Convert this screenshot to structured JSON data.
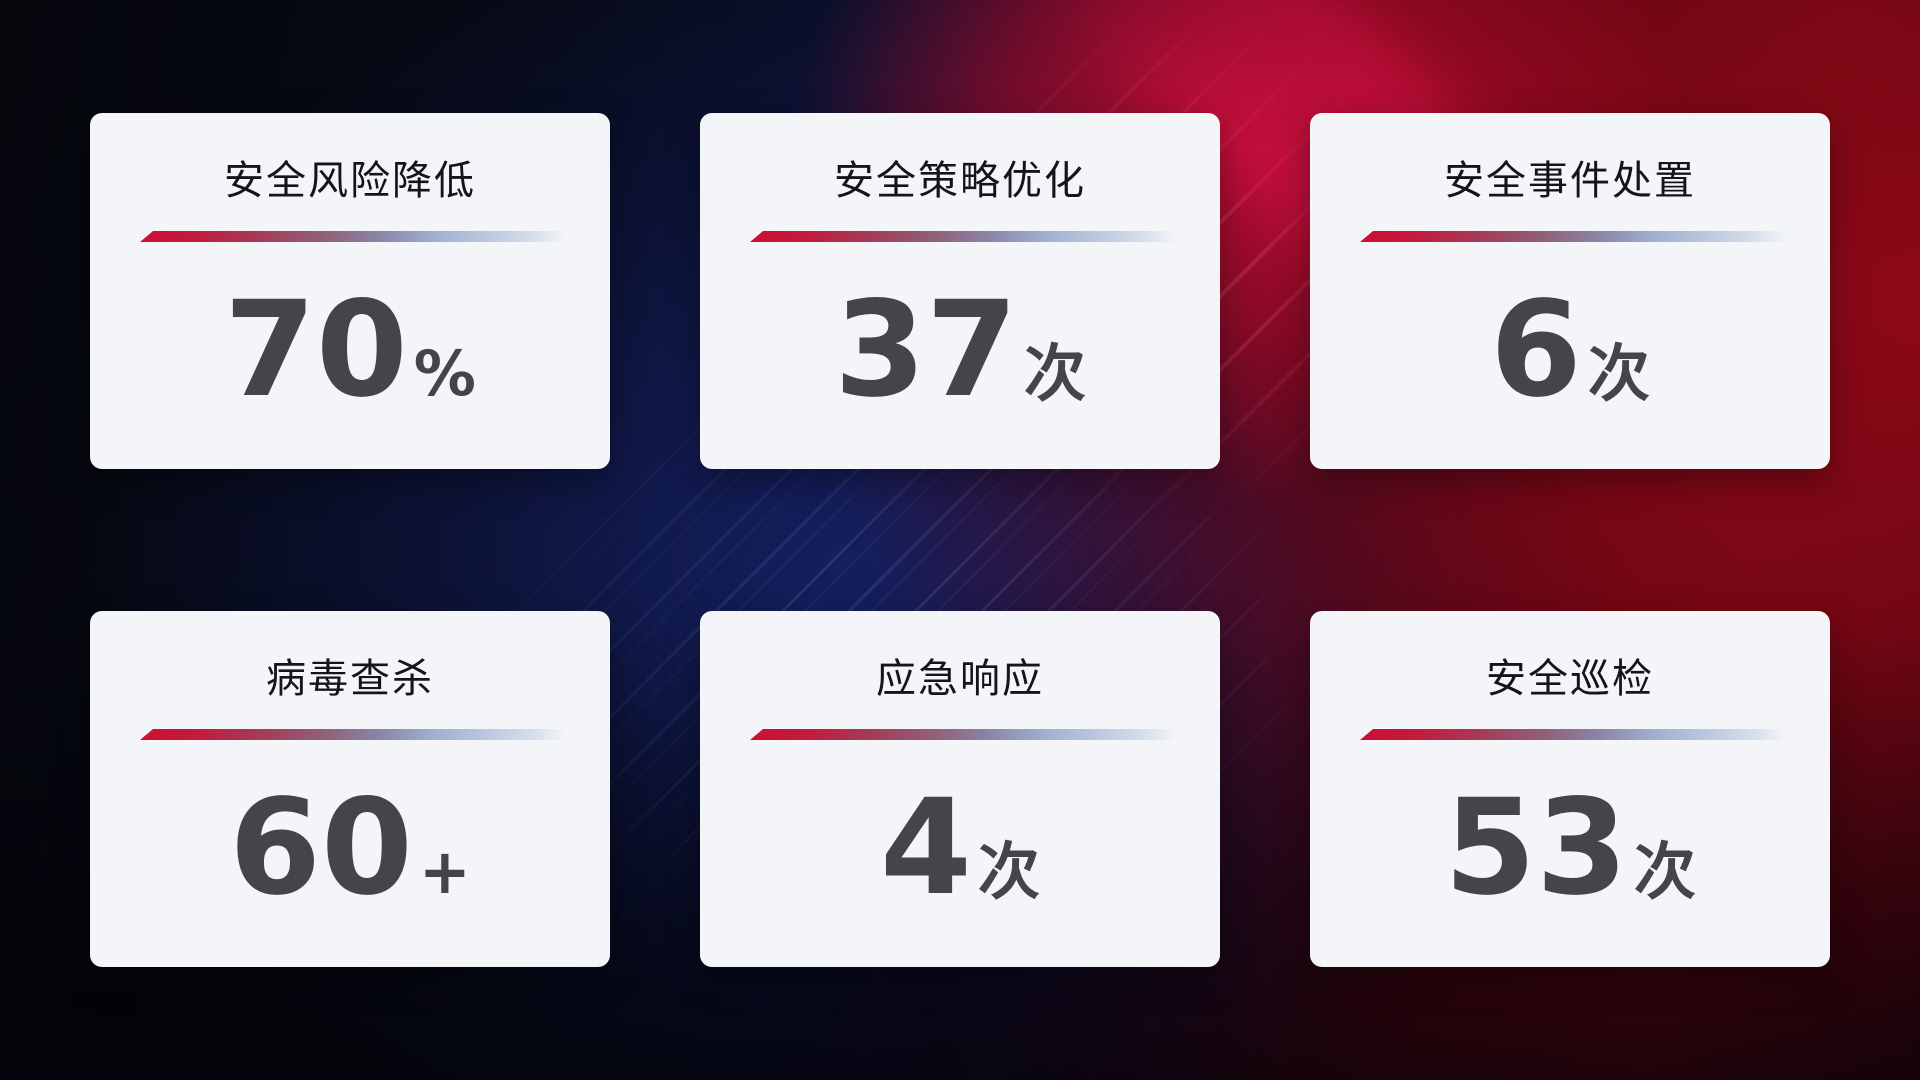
{
  "cards": [
    {
      "title": "安全风险降低",
      "value": "70",
      "unit": "%"
    },
    {
      "title": "安全策略优化",
      "value": "37",
      "unit": "次"
    },
    {
      "title": "安全事件处置",
      "value": "6",
      "unit": "次"
    },
    {
      "title": "病毒查杀",
      "value": "60",
      "unit": "+"
    },
    {
      "title": "应急响应",
      "value": "4",
      "unit": "次"
    },
    {
      "title": "安全巡检",
      "value": "53",
      "unit": "次"
    }
  ],
  "colors": {
    "card-bg": "#f4f5f8",
    "title-color": "#151517",
    "value-color": "#454549",
    "divider-red": "#cb1034",
    "divider-blue": "#b9c6dd",
    "bg-navy": "#0a102c",
    "bg-blue": "#182470",
    "bg-red": "#8a0916",
    "bg-crimson": "#cd0e37"
  }
}
